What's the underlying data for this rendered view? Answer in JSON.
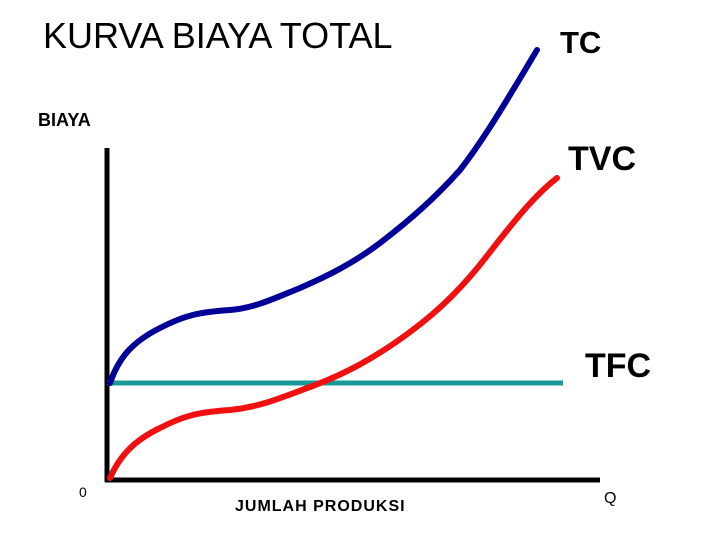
{
  "title": "KURVA BIAYA TOTAL",
  "y_axis_label": "BIAYA",
  "x_axis_label": "JUMLAH PRODUKSI",
  "origin_label": "0",
  "x_end_label": "Q",
  "curves": [
    {
      "label": "TC"
    },
    {
      "label": "TVC"
    },
    {
      "label": "TFC"
    }
  ]
}
